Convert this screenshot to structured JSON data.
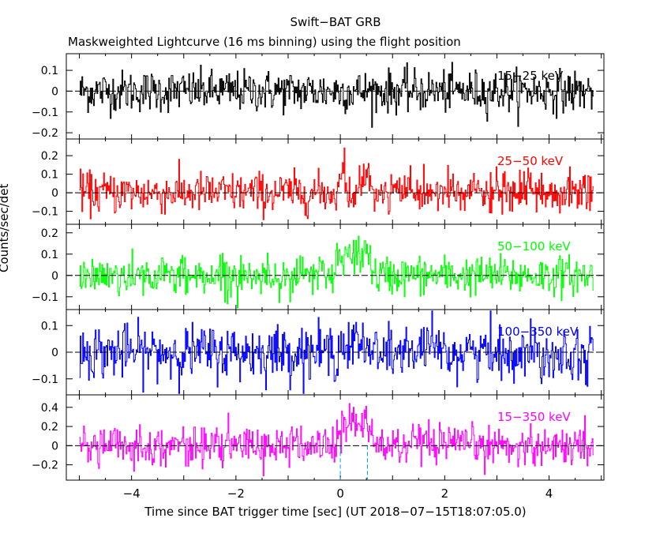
{
  "chart_data": {
    "type": "line",
    "title": "Swift−BAT GRB",
    "subtitle": "Maskweighted Lightcurve (16 ms binning) using the flight position",
    "xlabel": "Time since BAT trigger time [sec] (UT 2018−07−15T18:07:05.0)",
    "ylabel": "Counts/sec/det",
    "xlim": [
      -5.25,
      5.05
    ],
    "x_ticks": [
      -4,
      -2,
      0,
      2,
      4
    ],
    "x_tick_labels": [
      "−4",
      "−2",
      "0",
      "2",
      "4"
    ],
    "bin_width_s": 0.016,
    "x_range_data": [
      -5.0,
      4.85
    ],
    "trigger_markers": [
      0.0,
      0.52
    ],
    "panels": [
      {
        "name": "15−25 keV",
        "color": "#000000",
        "ylim": [
          -0.23,
          0.18
        ],
        "y_ticks": [
          -0.2,
          -0.1,
          0,
          0.1
        ],
        "y_tick_labels": [
          "−0.2",
          "−0.1",
          "0",
          "0.1"
        ],
        "noise_sigma": 0.05,
        "pulses": []
      },
      {
        "name": "25−50 keV",
        "color": "#ff0000",
        "ylim": [
          -0.17,
          0.29
        ],
        "y_ticks": [
          -0.1,
          0,
          0.1,
          0.2
        ],
        "y_tick_labels": [
          "−0.1",
          "0",
          "0.1",
          "0.2"
        ],
        "noise_sigma": 0.055,
        "pulses": [
          {
            "t0": -0.05,
            "t1": 0.12,
            "amp": 0.11
          },
          {
            "t0": 0.35,
            "t1": 0.6,
            "amp": 0.08
          }
        ]
      },
      {
        "name": "50−100 keV",
        "color": "#00ff00",
        "ylim": [
          -0.16,
          0.24
        ],
        "y_ticks": [
          -0.1,
          0,
          0.1,
          0.2
        ],
        "y_tick_labels": [
          "−0.1",
          "0",
          "0.1",
          "0.2"
        ],
        "noise_sigma": 0.045,
        "pulses": [
          {
            "t0": -0.1,
            "t1": 0.6,
            "amp": 0.1
          },
          {
            "t0": 0.45,
            "t1": 0.58,
            "amp": 0.06
          }
        ]
      },
      {
        "name": "100−350 keV",
        "color": "#0000ff",
        "ylim": [
          -0.16,
          0.16
        ],
        "y_ticks": [
          -0.1,
          0,
          0.1
        ],
        "y_tick_labels": [
          "−0.1",
          "0",
          "0.1"
        ],
        "noise_sigma": 0.05,
        "pulses": [
          {
            "t0": -0.05,
            "t1": 0.55,
            "amp": 0.03
          }
        ]
      },
      {
        "name": "15−350 keV",
        "color": "#ff00ff",
        "ylim": [
          -0.36,
          0.53
        ],
        "y_ticks": [
          -0.2,
          0,
          0.2,
          0.4
        ],
        "y_tick_labels": [
          "−0.2",
          "0",
          "0.2",
          "0.4"
        ],
        "noise_sigma": 0.1,
        "pulses": [
          {
            "t0": -0.08,
            "t1": 0.62,
            "amp": 0.28
          }
        ]
      }
    ]
  }
}
